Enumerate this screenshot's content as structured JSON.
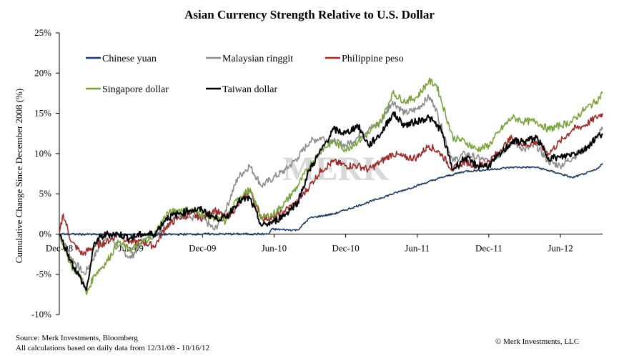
{
  "chart_data": {
    "type": "line",
    "title": "Asian Currency Strength Relative to U.S. Dollar",
    "ylabel": "Cumulative Change Since December 2008 (%)",
    "xlabel": "",
    "ylim": [
      -10,
      25
    ],
    "yticks": [
      "-10%",
      "-5%",
      "0%",
      "5%",
      "10%",
      "15%",
      "20%",
      "25%"
    ],
    "xticks": [
      "Dec-08",
      "Jun-09",
      "Dec-09",
      "Jun-10",
      "Dec-10",
      "Jun-11",
      "Dec-11",
      "Jun-12"
    ],
    "x_range": [
      "2008-12-31",
      "2012-10-16"
    ],
    "grid": false,
    "legend_position": "top-left",
    "watermark": "MERK",
    "series": [
      {
        "name": "Chinese yuan",
        "color": "#1f3b63",
        "points": [
          [
            "2008-12-31",
            0
          ],
          [
            "2009-06-30",
            -0.1
          ],
          [
            "2009-12-31",
            0
          ],
          [
            "2010-06-18",
            0
          ],
          [
            "2010-06-25",
            0.6
          ],
          [
            "2010-08-31",
            0.5
          ],
          [
            "2010-09-30",
            2.0
          ],
          [
            "2010-11-30",
            2.5
          ],
          [
            "2010-12-31",
            3.0
          ],
          [
            "2011-03-31",
            4.5
          ],
          [
            "2011-06-30",
            6.0
          ],
          [
            "2011-08-31",
            7.0
          ],
          [
            "2011-10-31",
            7.8
          ],
          [
            "2011-12-31",
            8.0
          ],
          [
            "2012-02-28",
            8.3
          ],
          [
            "2012-04-30",
            8.3
          ],
          [
            "2012-06-30",
            7.5
          ],
          [
            "2012-07-31",
            7.0
          ],
          [
            "2012-08-31",
            7.5
          ],
          [
            "2012-09-30",
            8.0
          ],
          [
            "2012-10-16",
            8.8
          ]
        ]
      },
      {
        "name": "Malaysian ringgit",
        "color": "#8c8c8c",
        "points": [
          [
            "2008-12-31",
            0
          ],
          [
            "2009-01-31",
            -3.0
          ],
          [
            "2009-03-05",
            -5.0
          ],
          [
            "2009-04-30",
            0
          ],
          [
            "2009-05-31",
            -1.5
          ],
          [
            "2009-06-30",
            -3.0
          ],
          [
            "2009-07-31",
            -1.0
          ],
          [
            "2009-08-31",
            0
          ],
          [
            "2009-09-30",
            1.0
          ],
          [
            "2009-10-31",
            2.5
          ],
          [
            "2009-11-30",
            2.0
          ],
          [
            "2009-12-31",
            2.0
          ],
          [
            "2010-01-31",
            0.5
          ],
          [
            "2010-02-28",
            3.0
          ],
          [
            "2010-03-31",
            7.0
          ],
          [
            "2010-04-30",
            8.5
          ],
          [
            "2010-05-31",
            6.0
          ],
          [
            "2010-06-30",
            7.0
          ],
          [
            "2010-07-31",
            8.0
          ],
          [
            "2010-08-31",
            9.5
          ],
          [
            "2010-09-30",
            11.5
          ],
          [
            "2010-10-31",
            12.0
          ],
          [
            "2010-11-30",
            11.5
          ],
          [
            "2010-12-31",
            11.0
          ],
          [
            "2011-01-31",
            12.0
          ],
          [
            "2011-02-28",
            13.0
          ],
          [
            "2011-03-31",
            14.0
          ],
          [
            "2011-04-30",
            16.5
          ],
          [
            "2011-05-31",
            15.0
          ],
          [
            "2011-06-30",
            15.5
          ],
          [
            "2011-07-31",
            17.0
          ],
          [
            "2011-08-15",
            16.0
          ],
          [
            "2011-09-30",
            9.0
          ],
          [
            "2011-10-31",
            10.0
          ],
          [
            "2011-11-30",
            9.5
          ],
          [
            "2011-12-31",
            9.0
          ],
          [
            "2012-01-31",
            10.0
          ],
          [
            "2012-02-28",
            11.5
          ],
          [
            "2012-03-31",
            10.5
          ],
          [
            "2012-04-30",
            11.0
          ],
          [
            "2012-05-31",
            9.0
          ],
          [
            "2012-06-30",
            8.5
          ],
          [
            "2012-07-31",
            9.5
          ],
          [
            "2012-08-31",
            10.5
          ],
          [
            "2012-09-30",
            12.0
          ],
          [
            "2012-10-16",
            13.0
          ]
        ]
      },
      {
        "name": "Philippine peso",
        "color": "#9b2d2d",
        "points": [
          [
            "2008-12-31",
            0
          ],
          [
            "2009-01-10",
            2.5
          ],
          [
            "2009-01-31",
            -1.0
          ],
          [
            "2009-02-28",
            -2.5
          ],
          [
            "2009-03-31",
            -1.5
          ],
          [
            "2009-04-30",
            -1.0
          ],
          [
            "2009-05-31",
            0
          ],
          [
            "2009-06-30",
            -1.0
          ],
          [
            "2009-07-31",
            -1.0
          ],
          [
            "2009-08-31",
            -1.5
          ],
          [
            "2009-09-30",
            1.0
          ],
          [
            "2009-10-31",
            2.0
          ],
          [
            "2009-11-30",
            2.5
          ],
          [
            "2009-12-31",
            2.0
          ],
          [
            "2010-01-31",
            3.0
          ],
          [
            "2010-02-28",
            2.0
          ],
          [
            "2010-03-31",
            3.5
          ],
          [
            "2010-04-30",
            5.5
          ],
          [
            "2010-05-31",
            2.0
          ],
          [
            "2010-06-30",
            2.0
          ],
          [
            "2010-07-31",
            3.0
          ],
          [
            "2010-08-31",
            4.0
          ],
          [
            "2010-09-30",
            6.0
          ],
          [
            "2010-10-31",
            8.0
          ],
          [
            "2010-11-30",
            9.0
          ],
          [
            "2010-12-31",
            8.5
          ],
          [
            "2011-01-31",
            8.5
          ],
          [
            "2011-02-28",
            8.0
          ],
          [
            "2011-03-31",
            9.0
          ],
          [
            "2011-04-30",
            10.0
          ],
          [
            "2011-05-31",
            9.5
          ],
          [
            "2011-06-30",
            9.5
          ],
          [
            "2011-07-31",
            11.0
          ],
          [
            "2011-08-31",
            10.0
          ],
          [
            "2011-09-30",
            8.0
          ],
          [
            "2011-10-31",
            9.0
          ],
          [
            "2011-11-30",
            8.5
          ],
          [
            "2011-12-31",
            9.0
          ],
          [
            "2012-01-31",
            10.5
          ],
          [
            "2012-02-28",
            12.0
          ],
          [
            "2012-03-31",
            11.0
          ],
          [
            "2012-04-30",
            11.5
          ],
          [
            "2012-05-31",
            10.0
          ],
          [
            "2012-06-30",
            11.5
          ],
          [
            "2012-07-31",
            13.0
          ],
          [
            "2012-08-31",
            13.5
          ],
          [
            "2012-09-30",
            14.5
          ],
          [
            "2012-10-16",
            15.0
          ]
        ]
      },
      {
        "name": "Singapore dollar",
        "color": "#79a33c",
        "points": [
          [
            "2008-12-31",
            0
          ],
          [
            "2009-01-31",
            -4.0
          ],
          [
            "2009-02-28",
            -5.5
          ],
          [
            "2009-03-10",
            -7.5
          ],
          [
            "2009-03-31",
            -5.0
          ],
          [
            "2009-04-30",
            -3.5
          ],
          [
            "2009-05-31",
            -1.0
          ],
          [
            "2009-06-30",
            -2.0
          ],
          [
            "2009-07-31",
            -1.0
          ],
          [
            "2009-08-31",
            0
          ],
          [
            "2009-09-30",
            2.5
          ],
          [
            "2009-10-31",
            3.0
          ],
          [
            "2009-11-30",
            3.0
          ],
          [
            "2009-12-31",
            2.5
          ],
          [
            "2010-01-31",
            2.0
          ],
          [
            "2010-02-28",
            1.5
          ],
          [
            "2010-03-31",
            4.5
          ],
          [
            "2010-04-30",
            5.5
          ],
          [
            "2010-05-31",
            2.0
          ],
          [
            "2010-06-30",
            2.5
          ],
          [
            "2010-07-31",
            4.0
          ],
          [
            "2010-08-31",
            6.0
          ],
          [
            "2010-09-30",
            8.5
          ],
          [
            "2010-10-31",
            10.5
          ],
          [
            "2010-11-30",
            11.5
          ],
          [
            "2010-12-31",
            10.5
          ],
          [
            "2011-01-31",
            11.5
          ],
          [
            "2011-02-28",
            12.5
          ],
          [
            "2011-03-31",
            14.0
          ],
          [
            "2011-04-30",
            17.5
          ],
          [
            "2011-05-31",
            16.5
          ],
          [
            "2011-06-30",
            17.0
          ],
          [
            "2011-07-31",
            19.0
          ],
          [
            "2011-08-20",
            18.5
          ],
          [
            "2011-09-30",
            12.0
          ],
          [
            "2011-10-31",
            11.5
          ],
          [
            "2011-11-30",
            10.5
          ],
          [
            "2011-12-31",
            11.0
          ],
          [
            "2012-01-31",
            13.0
          ],
          [
            "2012-02-28",
            14.5
          ],
          [
            "2012-03-31",
            14.0
          ],
          [
            "2012-04-30",
            14.0
          ],
          [
            "2012-05-31",
            13.0
          ],
          [
            "2012-06-30",
            13.5
          ],
          [
            "2012-07-31",
            14.0
          ],
          [
            "2012-08-31",
            15.5
          ],
          [
            "2012-09-30",
            16.5
          ],
          [
            "2012-10-16",
            17.5
          ]
        ]
      },
      {
        "name": "Taiwan dollar",
        "color": "#000000",
        "points": [
          [
            "2008-12-31",
            0
          ],
          [
            "2009-01-31",
            -3.5
          ],
          [
            "2009-02-28",
            -6.0
          ],
          [
            "2009-03-10",
            -7.0
          ],
          [
            "2009-03-31",
            -1.0
          ],
          [
            "2009-04-30",
            0
          ],
          [
            "2009-05-31",
            0
          ],
          [
            "2009-06-30",
            -0.5
          ],
          [
            "2009-07-31",
            0
          ],
          [
            "2009-08-31",
            0
          ],
          [
            "2009-09-30",
            2.0
          ],
          [
            "2009-10-31",
            2.5
          ],
          [
            "2009-11-30",
            3.0
          ],
          [
            "2009-12-31",
            3.0
          ],
          [
            "2010-01-31",
            2.0
          ],
          [
            "2010-02-28",
            2.0
          ],
          [
            "2010-03-31",
            4.0
          ],
          [
            "2010-04-30",
            4.5
          ],
          [
            "2010-05-31",
            1.0
          ],
          [
            "2010-06-30",
            1.5
          ],
          [
            "2010-07-31",
            2.5
          ],
          [
            "2010-08-31",
            4.0
          ],
          [
            "2010-09-30",
            8.0
          ],
          [
            "2010-10-31",
            10.5
          ],
          [
            "2010-11-30",
            13.0
          ],
          [
            "2010-12-31",
            12.5
          ],
          [
            "2011-01-31",
            13.5
          ],
          [
            "2011-02-28",
            11.0
          ],
          [
            "2011-03-31",
            12.5
          ],
          [
            "2011-04-30",
            15.0
          ],
          [
            "2011-05-31",
            13.5
          ],
          [
            "2011-06-30",
            14.0
          ],
          [
            "2011-07-31",
            14.5
          ],
          [
            "2011-08-31",
            13.0
          ],
          [
            "2011-09-30",
            8.0
          ],
          [
            "2011-10-31",
            9.5
          ],
          [
            "2011-11-30",
            8.5
          ],
          [
            "2011-12-31",
            8.5
          ],
          [
            "2012-01-31",
            10.0
          ],
          [
            "2012-02-28",
            11.5
          ],
          [
            "2012-03-31",
            11.5
          ],
          [
            "2012-04-30",
            12.0
          ],
          [
            "2012-05-31",
            9.5
          ],
          [
            "2012-06-30",
            9.5
          ],
          [
            "2012-07-31",
            10.0
          ],
          [
            "2012-08-31",
            10.5
          ],
          [
            "2012-09-30",
            12.0
          ],
          [
            "2012-10-16",
            12.5
          ]
        ]
      }
    ]
  },
  "footer": {
    "source": "Source: Merk Investments, Bloomberg",
    "calc_note": "All calculations based on daily data from 12/31/08 - 10/16/12",
    "copyright": "© Merk Investments, LLC"
  }
}
